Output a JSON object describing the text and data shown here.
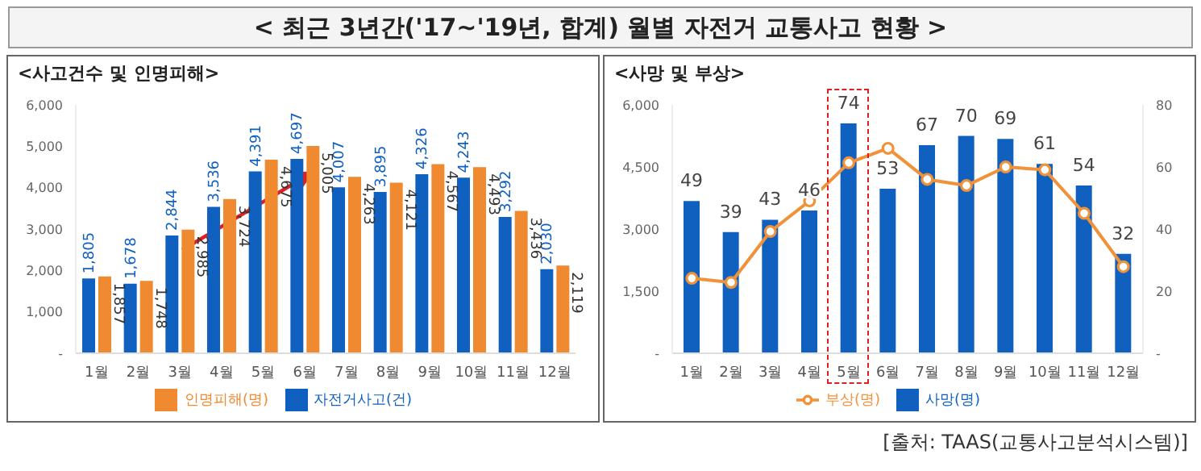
{
  "chart_data": [
    {
      "type": "bar",
      "title": "< 최근 3년간('17~'19년, 합계) 월별 자전거 교통사고 현황 >",
      "subtitle": "<사고건수 및 인명피해>",
      "categories": [
        "1월",
        "2월",
        "3월",
        "4월",
        "5월",
        "6월",
        "7월",
        "8월",
        "9월",
        "10월",
        "11월",
        "12월"
      ],
      "series": [
        {
          "name": "자전거사고(건)",
          "color": "#1060c0",
          "values": [
            1805,
            1678,
            2844,
            3536,
            4391,
            4697,
            4007,
            3895,
            4326,
            4243,
            3292,
            2030
          ],
          "value_labels": [
            "1,805",
            "1,678",
            "2,844",
            "3,536",
            "4,391",
            "4,697",
            "4,007",
            "3,895",
            "4,326",
            "4,243",
            "3,292",
            "2,030"
          ]
        },
        {
          "name": "인명피해(명)",
          "color": "#f08a30",
          "values": [
            1857,
            1748,
            2985,
            3724,
            4675,
            5005,
            4263,
            4121,
            4567,
            4493,
            3436,
            2119
          ],
          "value_labels": [
            "1,857",
            "1,748",
            "2,985",
            "3,724",
            "4,675",
            "5,005",
            "4,263",
            "4,121",
            "4,567",
            "4,493",
            "3,436",
            "2,119"
          ]
        }
      ],
      "ylim": [
        0,
        6000
      ],
      "yticks": [
        {
          "value": 0,
          "label": "-"
        },
        {
          "value": 1000,
          "label": "1,000"
        },
        {
          "value": 2000,
          "label": "2,000"
        },
        {
          "value": 3000,
          "label": "3,000"
        },
        {
          "value": 4000,
          "label": "4,000"
        },
        {
          "value": 5000,
          "label": "5,000"
        },
        {
          "value": 6000,
          "label": "6,000"
        }
      ],
      "legend": "bottom"
    },
    {
      "type": "bar",
      "title": "<사망 및 부상>",
      "categories": [
        "1월",
        "2월",
        "3월",
        "4월",
        "5월",
        "6월",
        "7월",
        "8월",
        "9월",
        "10월",
        "11월",
        "12월"
      ],
      "series": [
        {
          "name": "사망(명)",
          "type": "bar",
          "axis": "y2",
          "color": "#1060c0",
          "values": [
            49,
            39,
            43,
            46,
            74,
            53,
            67,
            70,
            69,
            61,
            54,
            32
          ],
          "value_labels": [
            "49",
            "39",
            "43",
            "46",
            "74",
            "53",
            "67",
            "70",
            "69",
            "61",
            "54",
            "32"
          ]
        },
        {
          "name": "부상(명)",
          "type": "line",
          "color": "#f0923a",
          "marker": "circle",
          "values": [
            1810,
            1710,
            2940,
            3680,
            4600,
            4950,
            4200,
            4050,
            4500,
            4430,
            3380,
            2090
          ]
        }
      ],
      "ylim": [
        0,
        6000
      ],
      "yticks": [
        {
          "value": 0,
          "label": "-"
        },
        {
          "value": 1500,
          "label": "1,500"
        },
        {
          "value": 3000,
          "label": "3,000"
        },
        {
          "value": 4500,
          "label": "4,500"
        },
        {
          "value": 6000,
          "label": "6,000"
        }
      ],
      "y2lim": [
        0,
        80
      ],
      "y2ticks": [
        {
          "value": 0,
          "label": "-"
        },
        20,
        40,
        60,
        80
      ],
      "legend": "bottom",
      "annotations": [
        "[출처: TAAS(교통사고분석시스템)]"
      ]
    }
  ]
}
